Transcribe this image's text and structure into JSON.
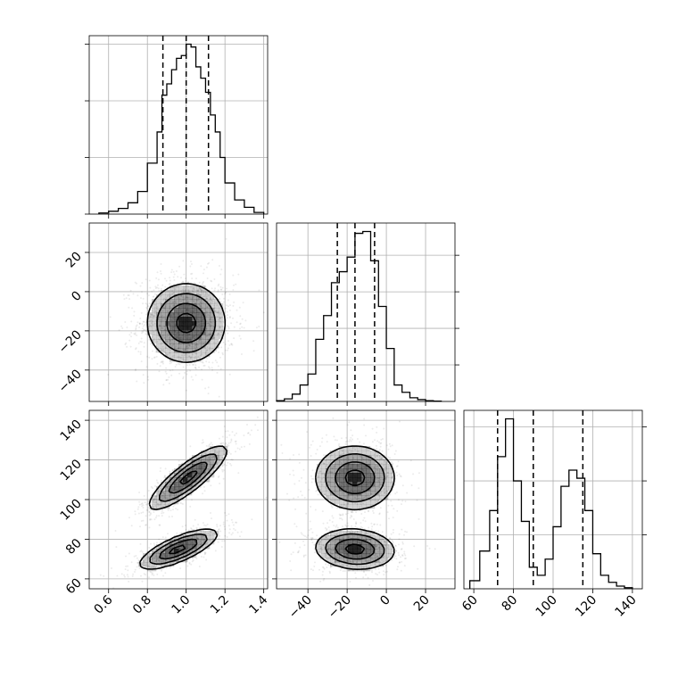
{
  "chart_data": {
    "type": "corner",
    "grid": true,
    "parameters": [
      {
        "id": "p0",
        "label": "",
        "range": [
          0.5,
          1.42
        ],
        "ticks": [
          0.6,
          0.8,
          1.0,
          1.2,
          1.4
        ],
        "tick_labels": [
          "0.6",
          "0.8",
          "1.0",
          "1.2",
          "1.4"
        ],
        "quantiles": [
          0.88,
          1.0,
          1.115
        ],
        "hist_y_ticks": [
          0,
          1,
          2,
          3
        ],
        "hist": {
          "edges": [
            0.55,
            0.6,
            0.65,
            0.7,
            0.75,
            0.8,
            0.85,
            0.875,
            0.9,
            0.925,
            0.95,
            0.975,
            1.0,
            1.025,
            1.05,
            1.075,
            1.1,
            1.125,
            1.15,
            1.175,
            1.2,
            1.25,
            1.3,
            1.35,
            1.4
          ],
          "counts": [
            0.02,
            0.05,
            0.1,
            0.2,
            0.4,
            0.9,
            1.45,
            2.1,
            2.3,
            2.55,
            2.75,
            2.8,
            3.0,
            2.95,
            2.6,
            2.4,
            2.15,
            1.75,
            1.45,
            1.0,
            0.55,
            0.25,
            0.12,
            0.03
          ]
        }
      },
      {
        "id": "p1",
        "label": "",
        "range": [
          -56,
          35
        ],
        "ticks": [
          -40,
          -20,
          0,
          20
        ],
        "tick_labels": [
          "−40",
          "−20",
          "0",
          "20"
        ],
        "quantiles": [
          -25,
          -16,
          -6
        ],
        "hist_y_ticks": [
          0,
          1,
          2,
          3,
          4
        ],
        "hist": {
          "edges": [
            -56,
            -52,
            -48,
            -44,
            -40,
            -36,
            -32,
            -28,
            -24,
            -20,
            -16,
            -12,
            -8,
            -4,
            0,
            4,
            8,
            12,
            16,
            20,
            24,
            28
          ],
          "counts": [
            0.02,
            0.07,
            0.2,
            0.45,
            0.75,
            1.7,
            2.35,
            3.25,
            3.55,
            3.95,
            4.6,
            4.65,
            3.85,
            2.6,
            1.45,
            0.45,
            0.25,
            0.1,
            0.05,
            0.02,
            0.01
          ]
        }
      },
      {
        "id": "p2",
        "label": "",
        "range": [
          55,
          145
        ],
        "ticks": [
          60,
          80,
          100,
          120,
          140
        ],
        "tick_labels": [
          "60",
          "80",
          "100",
          "120",
          "140"
        ],
        "quantiles": [
          72,
          90,
          115
        ],
        "hist_y_ticks": [
          0,
          1,
          2,
          3
        ],
        "hist": {
          "edges": [
            58,
            63,
            68,
            72,
            76,
            80,
            84,
            88,
            92,
            96,
            100,
            104,
            108,
            112,
            116,
            120,
            124,
            128,
            132,
            136,
            140
          ],
          "counts": [
            0.15,
            0.7,
            1.45,
            2.45,
            3.15,
            2.0,
            1.25,
            0.4,
            0.25,
            0.55,
            1.15,
            1.9,
            2.2,
            2.05,
            1.45,
            0.65,
            0.25,
            0.12,
            0.05,
            0.02
          ]
        }
      }
    ],
    "pairs": [
      {
        "x": "p0",
        "y": "p1",
        "modes": [
          {
            "center": [
              1.0,
              -16
            ],
            "sigma": [
              0.1,
              10
            ],
            "rho": 0.0,
            "weight": 1.0
          }
        ],
        "contour_levels": [
          0.5,
          1.0,
          1.5,
          2.0
        ]
      },
      {
        "x": "p0",
        "y": "p2",
        "modes": [
          {
            "center": [
              1.01,
              111
            ],
            "sigma": [
              0.1,
              8
            ],
            "rho": 0.85,
            "weight": 0.5
          },
          {
            "center": [
              0.96,
              75
            ],
            "sigma": [
              0.1,
              5
            ],
            "rho": 0.75,
            "weight": 0.5
          }
        ],
        "contour_levels": [
          0.5,
          1.0,
          1.5,
          2.0
        ]
      },
      {
        "x": "p1",
        "y": "p2",
        "modes": [
          {
            "center": [
              -16,
              111
            ],
            "sigma": [
              10,
              8
            ],
            "rho": 0.0,
            "weight": 0.5
          },
          {
            "center": [
              -16,
              75
            ],
            "sigma": [
              10,
              5
            ],
            "rho": -0.1,
            "weight": 0.5
          }
        ],
        "contour_levels": [
          0.5,
          1.0,
          1.5,
          2.0
        ]
      }
    ]
  }
}
